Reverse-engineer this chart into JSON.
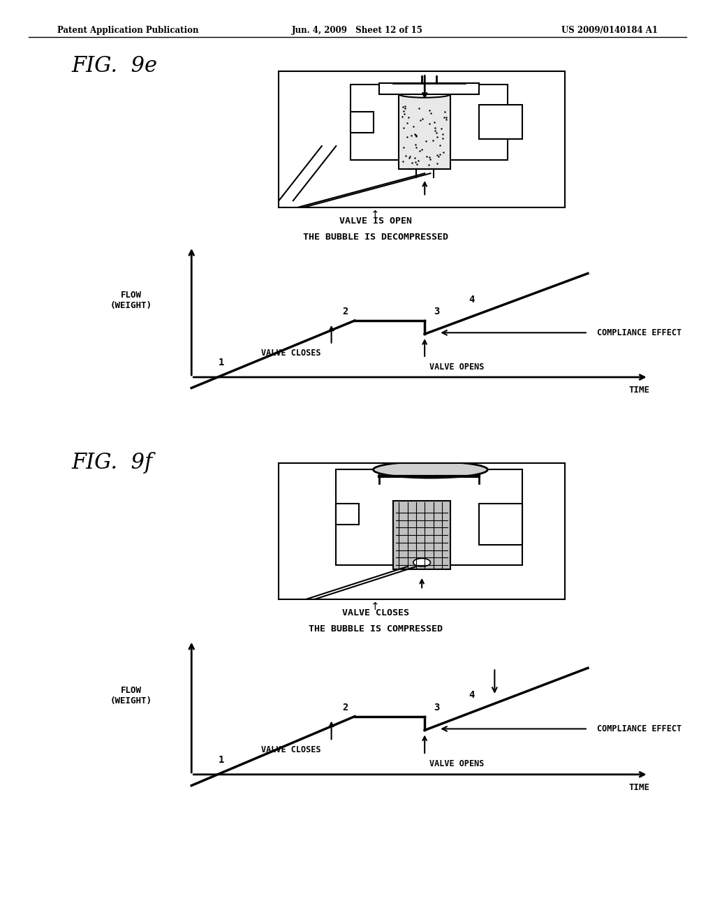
{
  "header_left": "Patent Application Publication",
  "header_mid": "Jun. 4, 2009   Sheet 12 of 15",
  "header_right": "US 2009/0140184 A1",
  "fig9e_title": "FIG.  9e",
  "fig9f_title": "FIG.  9f",
  "fig9e_caption1": "VALVE IS OPEN",
  "fig9e_caption2": "THE BUBBLE IS DECOMPRESSED",
  "fig9f_caption1": "VALVE CLOSES",
  "fig9f_caption2": "THE BUBBLE IS COMPRESSED",
  "ylabel": "FLOW\n(WEIGHT)",
  "xlabel": "TIME",
  "compliance_label": "COMPLIANCE EFFECT",
  "valve_closes_label": "VALVE CLOSES",
  "valve_opens_label": "VALVE OPENS",
  "bg_color": "#ffffff",
  "line_color": "#000000",
  "font_color": "#000000"
}
